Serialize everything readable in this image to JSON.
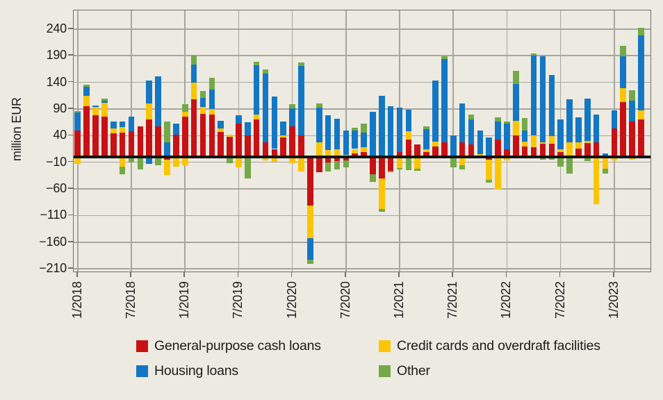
{
  "chart_data": {
    "type": "bar",
    "variant": "stacked-monthly",
    "title": "",
    "ylabel": "million EUR",
    "ylim": [
      -215,
      275
    ],
    "grid": true,
    "legend_position": "bottom",
    "colors": {
      "background": "#edeae2",
      "gridline": "#a8a59e",
      "frame": "#706e67",
      "zero_line": "#131310",
      "text": "#1b1b19"
    },
    "stack_order": [
      "r",
      "y",
      "b",
      "g"
    ],
    "series": [
      {
        "key": "r",
        "name": "General-purpose cash loans",
        "color": "#c81115"
      },
      {
        "key": "y",
        "name": "Credit cards and overdraft facilities",
        "color": "#fcc500"
      },
      {
        "key": "b",
        "name": "Housing loans",
        "color": "#1377c3"
      },
      {
        "key": "g",
        "name": "Other",
        "color": "#74a947"
      }
    ],
    "y_ticks": [
      {
        "v": 240,
        "label": "240"
      },
      {
        "v": 190,
        "label": "190"
      },
      {
        "v": 140,
        "label": "140"
      },
      {
        "v": 90,
        "label": "90"
      },
      {
        "v": 40,
        "label": "40"
      },
      {
        "v": -10,
        "label": "−10"
      },
      {
        "v": -60,
        "label": "−60"
      },
      {
        "v": -110,
        "label": "−110"
      },
      {
        "v": -160,
        "label": "−160"
      },
      {
        "v": -210,
        "label": "−210"
      }
    ],
    "x_ticks": [
      {
        "i": 0,
        "label": "1/2018"
      },
      {
        "i": 6,
        "label": "7/2018"
      },
      {
        "i": 12,
        "label": "1/2019"
      },
      {
        "i": 18,
        "label": "7/2019"
      },
      {
        "i": 24,
        "label": "1/2020"
      },
      {
        "i": 30,
        "label": "7/2020"
      },
      {
        "i": 36,
        "label": "1/2021"
      },
      {
        "i": 42,
        "label": "7/2021"
      },
      {
        "i": 48,
        "label": "1/2022"
      },
      {
        "i": 54,
        "label": "7/2022"
      },
      {
        "i": 60,
        "label": "1/2023"
      }
    ],
    "months": [
      {
        "m": "1/2018",
        "pos": {
          "r": 50,
          "b": 33,
          "g": 3
        },
        "neg": {
          "y": -13
        }
      },
      {
        "m": "2/2018",
        "pos": {
          "r": 95,
          "y": 20,
          "b": 16,
          "g": 4
        },
        "neg": {}
      },
      {
        "m": "3/2018",
        "pos": {
          "r": 78,
          "y": 16,
          "b": 3
        },
        "neg": {}
      },
      {
        "m": "4/2018",
        "pos": {
          "r": 75,
          "y": 27,
          "b": 3,
          "g": 4
        },
        "neg": {}
      },
      {
        "m": "5/2018",
        "pos": {
          "r": 44,
          "y": 10,
          "b": 12
        },
        "neg": {}
      },
      {
        "m": "6/2018",
        "pos": {
          "r": 46,
          "y": 10,
          "b": 10
        },
        "neg": {
          "y": -18,
          "g": -14
        }
      },
      {
        "m": "7/2018",
        "pos": {
          "r": 48,
          "b": 27
        },
        "neg": {
          "g": -11
        }
      },
      {
        "m": "8/2018",
        "pos": {
          "r": 57
        },
        "neg": {
          "g": -23
        }
      },
      {
        "m": "9/2018",
        "pos": {
          "r": 71,
          "y": 30,
          "b": 42
        },
        "neg": {
          "b": -13
        }
      },
      {
        "m": "10/2018",
        "pos": {
          "r": 58,
          "b": 93
        },
        "neg": {
          "g": -15
        }
      },
      {
        "m": "11/2018",
        "pos": {
          "b": 28,
          "g": 38
        },
        "neg": {
          "r": -5,
          "y": -29
        }
      },
      {
        "m": "12/2018",
        "pos": {
          "r": 42,
          "b": 20
        },
        "neg": {
          "y": -18
        }
      },
      {
        "m": "1/2019",
        "pos": {
          "r": 76,
          "y": 9,
          "g": 14
        },
        "neg": {
          "y": -15
        }
      },
      {
        "m": "2/2019",
        "pos": {
          "r": 108,
          "y": 31,
          "b": 34,
          "g": 17
        },
        "neg": {}
      },
      {
        "m": "3/2019",
        "pos": {
          "r": 81,
          "y": 13,
          "b": 17,
          "g": 13
        },
        "neg": {}
      },
      {
        "m": "4/2019",
        "pos": {
          "r": 80,
          "y": 10,
          "b": 37,
          "g": 21
        },
        "neg": {}
      },
      {
        "m": "5/2019",
        "pos": {
          "r": 47,
          "y": 6,
          "b": 15
        },
        "neg": {}
      },
      {
        "m": "6/2019",
        "pos": {
          "r": 38,
          "y": 4
        },
        "neg": {
          "g": -12
        }
      },
      {
        "m": "7/2019",
        "pos": {
          "r": 62,
          "b": 16
        },
        "neg": {
          "y": -20
        }
      },
      {
        "m": "8/2019",
        "pos": {
          "r": 40,
          "b": 25
        },
        "neg": {
          "g": -41
        }
      },
      {
        "m": "9/2019",
        "pos": {
          "r": 71,
          "y": 9,
          "b": 92,
          "g": 6
        },
        "neg": {}
      },
      {
        "m": "10/2019",
        "pos": {
          "r": 27,
          "b": 129,
          "g": 8
        },
        "neg": {
          "y": -7
        }
      },
      {
        "m": "11/2019",
        "pos": {
          "r": 15,
          "b": 99
        },
        "neg": {
          "y": -9
        }
      },
      {
        "m": "12/2019",
        "pos": {
          "r": 36,
          "y": 5,
          "b": 25
        },
        "neg": {}
      },
      {
        "m": "1/2020",
        "pos": {
          "r": 58,
          "b": 33,
          "g": 8
        },
        "neg": {
          "y": -12
        }
      },
      {
        "m": "2/2020",
        "pos": {
          "r": 41,
          "b": 130,
          "g": 6
        },
        "neg": {
          "y": -27
        }
      },
      {
        "m": "3/2020",
        "pos": {},
        "neg": {
          "r": -91,
          "y": -62,
          "b": -40,
          "g": -8
        }
      },
      {
        "m": "4/2020",
        "pos": {
          "y": 27,
          "b": 66,
          "g": 7
        },
        "neg": {
          "r": -28
        }
      },
      {
        "m": "5/2020",
        "pos": {
          "r": 3,
          "y": 10,
          "b": 65
        },
        "neg": {
          "r": -10,
          "g": -18
        }
      },
      {
        "m": "6/2020",
        "pos": {
          "y": 14,
          "b": 58
        },
        "neg": {
          "r": -8,
          "g": -16
        }
      },
      {
        "m": "7/2020",
        "pos": {
          "y": 4,
          "b": 45
        },
        "neg": {
          "r": -6,
          "g": -14
        }
      },
      {
        "m": "8/2020",
        "pos": {
          "r": 6,
          "y": 9,
          "b": 34,
          "g": 6
        },
        "neg": {}
      },
      {
        "m": "9/2020",
        "pos": {
          "r": 9,
          "y": 9,
          "b": 28,
          "g": 16
        },
        "neg": {}
      },
      {
        "m": "10/2020",
        "pos": {
          "b": 85
        },
        "neg": {
          "r": -33,
          "g": -14
        }
      },
      {
        "m": "11/2020",
        "pos": {
          "b": 115
        },
        "neg": {
          "r": -40,
          "y": -58,
          "g": -5
        }
      },
      {
        "m": "12/2020",
        "pos": {
          "b": 95
        },
        "neg": {
          "r": -26,
          "g": -3
        }
      },
      {
        "m": "1/2021",
        "pos": {
          "r": 9,
          "b": 84
        },
        "neg": {
          "y": -21,
          "g": -3
        }
      },
      {
        "m": "2/2021",
        "pos": {
          "r": 32,
          "y": 16,
          "b": 40
        },
        "neg": {
          "g": -25
        }
      },
      {
        "m": "3/2021",
        "pos": {
          "r": 24
        },
        "neg": {
          "y": -22,
          "g": -4
        }
      },
      {
        "m": "4/2021",
        "pos": {
          "r": 9,
          "y": 5,
          "b": 38,
          "g": 5
        },
        "neg": {}
      },
      {
        "m": "5/2021",
        "pos": {
          "r": 20,
          "y": 9,
          "b": 114
        },
        "neg": {}
      },
      {
        "m": "6/2021",
        "pos": {
          "r": 27,
          "b": 157,
          "g": 5
        },
        "neg": {}
      },
      {
        "m": "7/2021",
        "pos": {
          "b": 41
        },
        "neg": {
          "g": -20
        }
      },
      {
        "m": "8/2021",
        "pos": {
          "r": 28,
          "b": 73
        },
        "neg": {
          "y": -15,
          "g": -8
        }
      },
      {
        "m": "9/2021",
        "pos": {
          "r": 24,
          "b": 47,
          "g": 8
        },
        "neg": {}
      },
      {
        "m": "10/2021",
        "pos": {
          "r": 3,
          "y": 2,
          "b": 45
        },
        "neg": {}
      },
      {
        "m": "11/2021",
        "pos": {
          "b": 37
        },
        "neg": {
          "r": -5,
          "y": -38,
          "g": -5
        }
      },
      {
        "m": "12/2021",
        "pos": {
          "r": 32,
          "b": 34,
          "g": 8
        },
        "neg": {
          "y": -61
        }
      },
      {
        "m": "1/2022",
        "pos": {
          "r": 15,
          "b": 47,
          "g": 5
        },
        "neg": {
          "y": -7
        }
      },
      {
        "m": "2/2022",
        "pos": {
          "r": 40,
          "y": 28,
          "b": 69,
          "g": 24
        },
        "neg": {}
      },
      {
        "m": "3/2022",
        "pos": {
          "r": 20,
          "y": 9,
          "b": 21,
          "g": 23
        },
        "neg": {}
      },
      {
        "m": "4/2022",
        "pos": {
          "r": 18,
          "y": 23,
          "b": 149,
          "g": 4
        },
        "neg": {}
      },
      {
        "m": "5/2022",
        "pos": {
          "r": 25,
          "y": 3,
          "b": 161
        },
        "neg": {
          "g": -5
        }
      },
      {
        "m": "6/2022",
        "pos": {
          "r": 25,
          "y": 14,
          "b": 115
        },
        "neg": {
          "g": -5
        }
      },
      {
        "m": "7/2022",
        "pos": {
          "r": 9,
          "y": 6,
          "b": 56
        },
        "neg": {
          "g": -18
        }
      },
      {
        "m": "8/2022",
        "pos": {
          "y": 28,
          "b": 80
        },
        "neg": {
          "g": -31
        }
      },
      {
        "m": "9/2022",
        "pos": {
          "r": 16,
          "y": 12,
          "b": 46
        },
        "neg": {}
      },
      {
        "m": "10/2022",
        "pos": {
          "r": 26,
          "y": 4,
          "b": 79
        },
        "neg": {
          "g": -8
        }
      },
      {
        "m": "11/2022",
        "pos": {
          "r": 28,
          "b": 52
        },
        "neg": {
          "y": -88
        }
      },
      {
        "m": "12/2022",
        "pos": {
          "b": 7
        },
        "neg": {
          "y": -22,
          "g": -9
        }
      },
      {
        "m": "1/2023",
        "pos": {
          "r": 54,
          "b": 33
        },
        "neg": {
          "y": -6
        }
      },
      {
        "m": "2/2023",
        "pos": {
          "r": 103,
          "y": 26,
          "b": 60,
          "g": 20
        },
        "neg": {}
      },
      {
        "m": "3/2023",
        "pos": {
          "r": 66,
          "b": 39,
          "g": 20
        },
        "neg": {
          "y": -5
        }
      },
      {
        "m": "4/2023",
        "pos": {
          "r": 71,
          "y": 16,
          "b": 141,
          "g": 14
        },
        "neg": {}
      }
    ]
  }
}
